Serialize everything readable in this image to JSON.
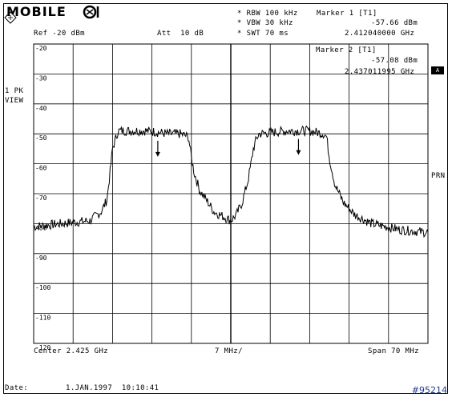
{
  "header": {
    "brand": "MOBILE",
    "rbw": "RBW 100 kHz",
    "vbw": "VBW 30 kHz",
    "swt": "SWT 70 ms",
    "marker1_label": "Marker 1 [T1]",
    "marker1_level": "-57.66 dBm",
    "marker1_freq": "2.412040000 GHz",
    "ref": "Ref -20 dBm",
    "att": "Att  10 dB"
  },
  "marker2": {
    "label": "Marker 2 [T1]",
    "level": "-57.08 dBm",
    "freq": "2.437011995 GHz"
  },
  "side": {
    "pk": "1 PK",
    "view": "VIEW",
    "prn": "PRN",
    "a_box": "A"
  },
  "footer": {
    "center": "Center 2.425 GHz",
    "div": "7 MHz/",
    "span": "Span 70 MHz",
    "date_label": "Date:",
    "date_value": "1.JAN.1997  10:10:41",
    "watermark": "#95214"
  },
  "chart_data": {
    "type": "line",
    "xlabel": "",
    "ylabel": "",
    "xlim": [
      2.39,
      2.46
    ],
    "ylim": [
      -120,
      -20
    ],
    "y_ticks": [
      -20,
      -30,
      -40,
      -50,
      -60,
      -70,
      -80,
      -90,
      -100,
      -110,
      -120
    ],
    "grid": true,
    "series": [
      {
        "x": [
          2.39,
          2.395,
          2.4,
          2.402,
          2.403,
          2.4035,
          2.404,
          2.405,
          2.41,
          2.414,
          2.416,
          2.4175,
          2.418,
          2.4185,
          2.4195,
          2.421,
          2.422,
          2.424,
          2.425,
          2.426,
          2.427,
          2.428,
          2.4285,
          2.429,
          2.4295,
          2.43,
          2.435,
          2.439,
          2.4415,
          2.442,
          2.4425,
          2.4435,
          2.445,
          2.447,
          2.45,
          2.455,
          2.46
        ],
        "y": [
          -81,
          -80,
          -79,
          -76,
          -72,
          -64,
          -55,
          -49,
          -49,
          -50,
          -50,
          -51,
          -58,
          -63,
          -69,
          -73,
          -76,
          -78,
          -79,
          -77,
          -73,
          -66,
          -61,
          -55,
          -52,
          -50,
          -49,
          -49,
          -50,
          -51,
          -58,
          -67,
          -73,
          -77,
          -80,
          -82,
          -83
        ]
      }
    ],
    "markers": [
      {
        "name": "Marker 1",
        "x": 2.41204,
        "y": -57.66
      },
      {
        "name": "Marker 2",
        "x": 2.437012,
        "y": -57.08
      }
    ]
  }
}
